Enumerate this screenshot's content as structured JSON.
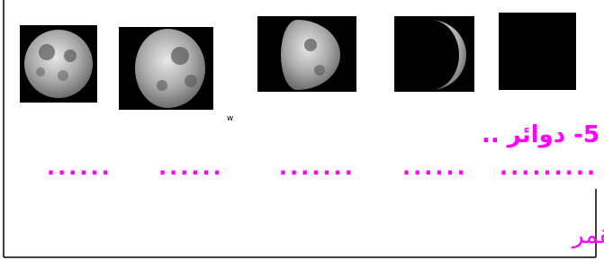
{
  "worksheet": {
    "heading": "5- دوائر ..",
    "blanks": [
      "......",
      "......",
      ".......",
      "......",
      "........."
    ],
    "instruction": "رتب منازل القمر",
    "stray_mark": "w"
  }
}
